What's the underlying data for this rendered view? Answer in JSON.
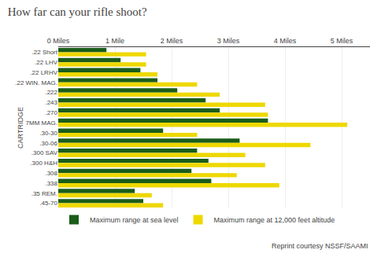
{
  "chart_data": {
    "type": "bar",
    "orientation": "horizontal",
    "title": "How far can your rifle shoot?",
    "ylabel": "CARTRIDGE",
    "categories": [
      ".22 Short",
      ".22 LHV",
      ".22 LRHV",
      ".22 WIN. MAG.",
      ".222",
      ".243",
      ".270",
      "7MM MAG.",
      ".30-30",
      ".30-06",
      ".300 SAV",
      ".300 H&H",
      ".308",
      ".338",
      ".35 REM.",
      ".45-70"
    ],
    "series": [
      {
        "name": "Maximum range at sea level",
        "color": "#1a5c1a",
        "values": [
          0.85,
          1.1,
          1.45,
          1.75,
          2.1,
          2.6,
          2.85,
          3.7,
          1.85,
          3.2,
          2.45,
          2.65,
          2.35,
          2.7,
          1.35,
          1.5
        ]
      },
      {
        "name": "Maximum range at 12,000 feet altitude",
        "color": "#eed800",
        "values": [
          1.55,
          1.55,
          1.75,
          2.45,
          2.85,
          3.65,
          3.7,
          5.1,
          2.45,
          4.45,
          3.3,
          3.65,
          3.15,
          3.9,
          1.65,
          1.85
        ]
      }
    ],
    "xlim": [
      0,
      5.5
    ],
    "xticks": [
      {
        "value": 0,
        "label": "0 Miles"
      },
      {
        "value": 1,
        "label": "1 Mile"
      },
      {
        "value": 2,
        "label": "2 Miles"
      },
      {
        "value": 3,
        "label": "3 Miles"
      },
      {
        "value": 4,
        "label": "4 Miles"
      },
      {
        "value": 5,
        "label": "5 Miles"
      }
    ],
    "grid": true,
    "legend": "bottom",
    "annotations": [
      "Reprint courtesy NSSF/SAAMI"
    ]
  }
}
